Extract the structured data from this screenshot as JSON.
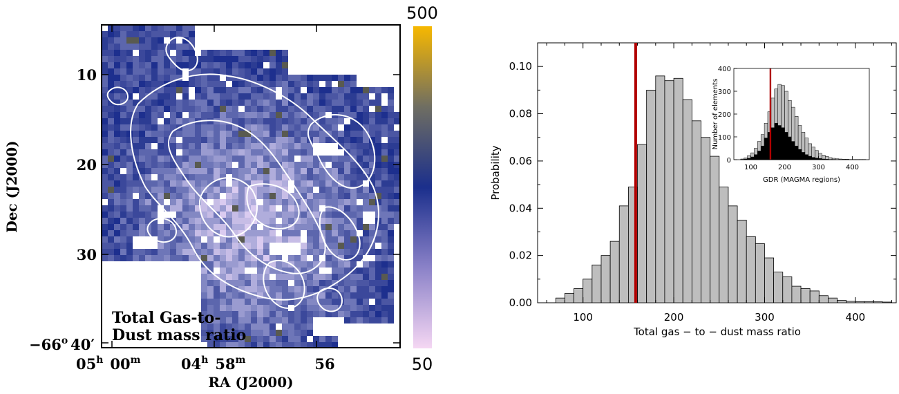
{
  "map": {
    "title_line1": "Total Gas-to-",
    "title_line2": "Dust mass ratio",
    "xlabel": "RA (J2000)",
    "ylabel": "Dec (J2000)",
    "xticks": [
      {
        "h": "05",
        "hs": "h",
        "m": "00",
        "ms": "m"
      },
      {
        "h": "04",
        "hs": "h",
        "m": "58",
        "ms": "m"
      },
      {
        "h": "",
        "hs": "",
        "m": "56",
        "ms": ""
      }
    ],
    "yticks": [
      "10",
      "20",
      "30"
    ],
    "ytick_last": {
      "deg": "−66",
      "deg_sup": "o",
      "min": "40′"
    },
    "colorbar": {
      "max": "500",
      "min": "50",
      "colors": [
        "#f5d7f3",
        "#8b82c8",
        "#1b2f8c",
        "#6f6e62",
        "#f7b800"
      ]
    }
  },
  "chart_data": [
    {
      "type": "bar",
      "xlabel": "Total gas − to − dust mass ratio",
      "ylabel": "Probability",
      "xlim": [
        50,
        445
      ],
      "ylim": [
        0,
        0.11
      ],
      "xticks": [
        100,
        200,
        300,
        400
      ],
      "yticks": [
        "0.00",
        "0.02",
        "0.04",
        "0.06",
        "0.08",
        "0.10"
      ],
      "bin_width": 10,
      "bin_starts": [
        70,
        80,
        90,
        100,
        110,
        120,
        130,
        140,
        150,
        160,
        170,
        180,
        190,
        200,
        210,
        220,
        230,
        240,
        250,
        260,
        270,
        280,
        290,
        300,
        310,
        320,
        330,
        340,
        350,
        360,
        370,
        380,
        390,
        400,
        410,
        420,
        430
      ],
      "values": [
        0.002,
        0.004,
        0.006,
        0.01,
        0.016,
        0.02,
        0.026,
        0.041,
        0.049,
        0.067,
        0.09,
        0.096,
        0.094,
        0.095,
        0.086,
        0.077,
        0.07,
        0.062,
        0.049,
        0.041,
        0.035,
        0.028,
        0.025,
        0.019,
        0.013,
        0.011,
        0.007,
        0.006,
        0.005,
        0.003,
        0.002,
        0.001,
        0.0006,
        0.0005,
        0.0005,
        0.0004,
        0.0003
      ],
      "bar_color": "#bebebe",
      "marker_x": 158,
      "marker_color": "#b00000"
    },
    {
      "type": "bar",
      "xlabel": "GDR (MAGMA regions)",
      "ylabel": "Number of elements",
      "xlim": [
        50,
        450
      ],
      "ylim": [
        0,
        400
      ],
      "xticks": [
        100,
        200,
        300,
        400
      ],
      "yticks": [
        0,
        100,
        200,
        300,
        400
      ],
      "bin_width": 10,
      "bin_starts": [
        70,
        80,
        90,
        100,
        110,
        120,
        130,
        140,
        150,
        160,
        170,
        180,
        190,
        200,
        210,
        220,
        230,
        240,
        250,
        260,
        270,
        280,
        290,
        300,
        310,
        320,
        330,
        340,
        350,
        360,
        370,
        380,
        390,
        400,
        410,
        420,
        430
      ],
      "series": [
        {
          "name": "",
          "color": "#bebebe",
          "values": [
            3,
            8,
            18,
            30,
            50,
            80,
            110,
            160,
            210,
            270,
            310,
            330,
            325,
            300,
            260,
            230,
            190,
            150,
            120,
            95,
            70,
            55,
            40,
            28,
            20,
            14,
            9,
            6,
            4,
            3,
            2,
            2,
            1,
            1,
            1,
            1,
            1
          ]
        },
        {
          "name": "",
          "color": "#000000",
          "values": [
            1,
            3,
            6,
            12,
            22,
            38,
            60,
            95,
            120,
            140,
            160,
            150,
            140,
            120,
            100,
            80,
            60,
            45,
            32,
            22,
            15,
            10,
            7,
            5,
            3,
            2,
            1,
            1,
            0,
            0,
            0,
            0,
            0,
            0,
            0,
            0,
            0
          ]
        }
      ],
      "marker_x": 158,
      "marker_color": "#b00000"
    }
  ]
}
